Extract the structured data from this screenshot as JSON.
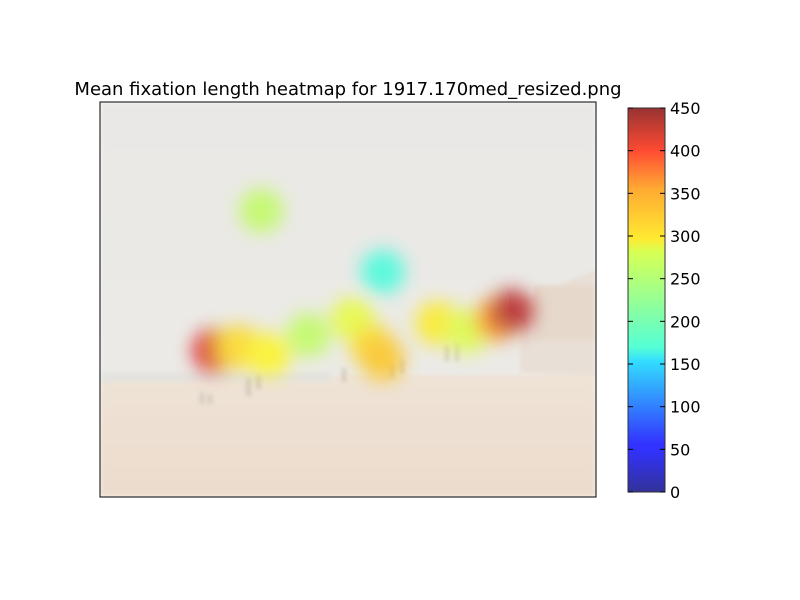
{
  "chart_data": {
    "type": "heatmap",
    "title": "Mean fixation length heatmap for 1917.170med_resized.png",
    "xlabel": "",
    "ylabel": "",
    "colormap": "jet",
    "colorbar": {
      "vmin": 0,
      "vmax": 450,
      "ticks": [
        0,
        50,
        100,
        150,
        200,
        250,
        300,
        350,
        400,
        450
      ]
    },
    "background": "faded beach painting",
    "hotspots": [
      {
        "x": 0.23,
        "y": 0.63,
        "value": 410
      },
      {
        "x": 0.28,
        "y": 0.62,
        "value": 300
      },
      {
        "x": 0.34,
        "y": 0.64,
        "value": 285
      },
      {
        "x": 0.42,
        "y": 0.59,
        "value": 250
      },
      {
        "x": 0.51,
        "y": 0.55,
        "value": 270
      },
      {
        "x": 0.55,
        "y": 0.62,
        "value": 300
      },
      {
        "x": 0.57,
        "y": 0.65,
        "value": 310
      },
      {
        "x": 0.68,
        "y": 0.56,
        "value": 290
      },
      {
        "x": 0.74,
        "y": 0.58,
        "value": 265
      },
      {
        "x": 0.8,
        "y": 0.55,
        "value": 340
      },
      {
        "x": 0.83,
        "y": 0.53,
        "value": 430
      },
      {
        "x": 0.57,
        "y": 0.43,
        "value": 185
      },
      {
        "x": 0.325,
        "y": 0.275,
        "value": 250
      }
    ]
  }
}
